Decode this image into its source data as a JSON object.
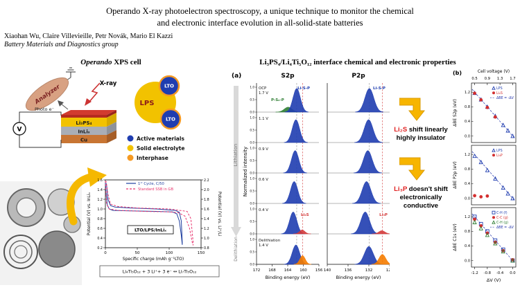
{
  "colors": {
    "accent_yellow": "#f5b800",
    "xps_blue": "#1f3db0",
    "electrolyte_yellow": "#f2c200",
    "interphase_orange": "#f59a23",
    "alert_red": "#e02020",
    "copper": "#c87533",
    "series_pink": "#e8336d"
  },
  "header": {
    "title_line1": "Operando X-ray photoelectron spectroscopy, a unique technique to monitor the chemical",
    "title_line2": "and electronic interface evolution in all-solid-state batteries",
    "authors": "Xiaohan Wu, Claire Villevieille,  Petr Novák, Mario El Kazzi",
    "group": "Battery Materials and Diagnostics group"
  },
  "left": {
    "heading_italic": "Operando",
    "heading_rest": " XPS cell",
    "schematic": {
      "analyzer_label": "Analyzer",
      "xray_label": "X-ray",
      "photo_e_label": "Photo e⁻",
      "voltmeter_label": "V",
      "lps_label": "LPS",
      "lto_label": "LTO",
      "layer_labels": [
        "Li₃PS₄",
        "InLiₓ",
        "Cu"
      ],
      "legend": [
        {
          "label": "Active materials",
          "color": "#1f3db0"
        },
        {
          "label": "Solid electrolyte",
          "color": "#f2c200"
        },
        {
          "label": "Interphase",
          "color": "#f59a23"
        }
      ]
    }
  },
  "middle": {
    "heading": "Li₃PS₄/Li₄Ti₅O₁₂  interface chemical and electronic properties"
  },
  "annotations": [
    {
      "highlight": "Li₂S",
      "rest": " shift linearly",
      "line2": "highly insulator"
    },
    {
      "highlight": "Li₃P",
      "rest": " doesn't shift",
      "line2": "electronically conductive"
    }
  ],
  "chart_data": [
    {
      "id": "echem",
      "type": "line",
      "xlabel": "Specific charge (mAh g⁻¹LTO)",
      "ylabel_left": "Potential (V) vs. InLiₓ",
      "ylabel_right": "Potential (V) vs. Li⁺/Li",
      "xlim": [
        0,
        150
      ],
      "xticks": [
        0,
        50,
        100,
        150
      ],
      "ylim_left": [
        0.2,
        1.6
      ],
      "yticks_left": [
        0.2,
        0.4,
        0.6,
        0.8,
        1.0,
        1.2,
        1.4,
        1.6
      ],
      "ylim_right": [
        0.8,
        2.2
      ],
      "yticks_right": [
        0.8,
        1.0,
        1.2,
        1.4,
        1.6,
        1.8,
        2.0,
        2.2
      ],
      "inner_label": "LTO/LPS/InLiₓ",
      "equation": "Li₄Ti₅O₁₂ + 3 Li⁺+ 3 e⁻ ↔ Li₇Ti₅O₁₂",
      "series": [
        {
          "name": "1ˢᵗ Cycle, C/50",
          "color": "#1f3f9f",
          "dash": false,
          "x": [
            0,
            1,
            3,
            6,
            12,
            40,
            80,
            105,
            112,
            116,
            119,
            120.5,
            120.5,
            119,
            116,
            110,
            80,
            40,
            15,
            8,
            4,
            2.5,
            1.5
          ],
          "y": [
            1.55,
            1.35,
            1.08,
            1.0,
            0.97,
            0.96,
            0.95,
            0.94,
            0.9,
            0.75,
            0.45,
            0.26,
            0.3,
            0.75,
            0.93,
            0.97,
            1.0,
            1.02,
            1.04,
            1.07,
            1.2,
            1.42,
            1.53
          ]
        },
        {
          "name": "Standard SSB in GB",
          "color": "#e8336d",
          "dash": true,
          "x": [
            0,
            2,
            6,
            20,
            60,
            100,
            115,
            125,
            132,
            136,
            137.5,
            137.5,
            134,
            128,
            100,
            50,
            20,
            8,
            4,
            2,
            1.2
          ],
          "y": [
            1.58,
            1.1,
            1.0,
            0.97,
            0.95,
            0.94,
            0.92,
            0.85,
            0.6,
            0.32,
            0.25,
            0.33,
            0.8,
            0.95,
            1.0,
            1.02,
            1.05,
            1.1,
            1.3,
            1.5,
            1.57
          ]
        }
      ]
    },
    {
      "id": "xps",
      "type": "spectra",
      "panel_label": "(a)",
      "ylabel": "Normalized intensity",
      "lithiation_label": "Lithiation",
      "delithiation_label": "Delithiation",
      "yticks": [
        "1.0",
        "0.5",
        "0.0"
      ],
      "columns": [
        {
          "title": "S2p",
          "xlabel": "Binding energy (eV)",
          "xmin": 172,
          "xmax": 156,
          "xticks": [
            172,
            168,
            164,
            160,
            156
          ],
          "guides": [
            {
              "x": 161.7,
              "color": "#8a8a8a"
            },
            {
              "x": 160.15,
              "color": "#d43a3a"
            }
          ]
        },
        {
          "title": "P2p",
          "xlabel": "Binding energy (eV)",
          "xmin": 140,
          "xmax": 128,
          "xticks": [
            140,
            136,
            132,
            128
          ],
          "guides": [
            {
              "x": 131.9,
              "color": "#8a8a8a"
            },
            {
              "x": 129.4,
              "color": "#d43a3a"
            }
          ]
        }
      ],
      "rows": [
        {
          "label_lines": [
            "OCP",
            "1.7 V"
          ],
          "spectra": [
            {
              "peaks": [
                {
                  "c": 163.9,
                  "h": 0.2,
                  "w": 1.0,
                  "color": "#2e7d32",
                  "label": "P-Sₓ-P",
                  "label_x": 166.6,
                  "label_dy": 26
                },
                {
                  "c": 161.7,
                  "h": 0.95,
                  "w": 0.95,
                  "color": "#1f3db0",
                  "label": "Li-S-P",
                  "label_x": 159.9,
                  "label_dy": 9
                }
              ]
            },
            {
              "peaks": [
                {
                  "c": 131.9,
                  "h": 0.95,
                  "w": 0.85,
                  "color": "#1f3db0",
                  "label": "Li-S-P",
                  "label_x": 130.0,
                  "label_dy": 9
                }
              ]
            }
          ]
        },
        {
          "label_lines": [
            "1.1 V"
          ],
          "spectra": [
            {
              "peaks": [
                {
                  "c": 161.9,
                  "h": 0.92,
                  "w": 0.95,
                  "color": "#1f3db0"
                }
              ]
            },
            {
              "peaks": [
                {
                  "c": 132.05,
                  "h": 0.92,
                  "w": 0.85,
                  "color": "#1f3db0"
                }
              ]
            }
          ]
        },
        {
          "label_lines": [
            "0.9 V"
          ],
          "spectra": [
            {
              "peaks": [
                {
                  "c": 162.1,
                  "h": 0.9,
                  "w": 0.95,
                  "color": "#1f3db0"
                }
              ]
            },
            {
              "peaks": [
                {
                  "c": 132.2,
                  "h": 0.9,
                  "w": 0.85,
                  "color": "#1f3db0"
                }
              ]
            }
          ]
        },
        {
          "label_lines": [
            "0.6 V"
          ],
          "spectra": [
            {
              "peaks": [
                {
                  "c": 162.35,
                  "h": 0.88,
                  "w": 0.95,
                  "color": "#1f3db0"
                }
              ]
            },
            {
              "peaks": [
                {
                  "c": 132.45,
                  "h": 0.88,
                  "w": 0.85,
                  "color": "#1f3db0"
                }
              ]
            }
          ]
        },
        {
          "label_lines": [
            "0.4 V"
          ],
          "spectra": [
            {
              "peaks": [
                {
                  "c": 162.6,
                  "h": 0.88,
                  "w": 0.95,
                  "color": "#1f3db0"
                },
                {
                  "c": 160.3,
                  "h": 0.16,
                  "w": 0.7,
                  "color": "#d43a3a",
                  "label": "Li₂S",
                  "label_x": 159.6,
                  "label_dy": 16
                }
              ]
            },
            {
              "peaks": [
                {
                  "c": 132.7,
                  "h": 0.88,
                  "w": 0.85,
                  "color": "#1f3db0"
                },
                {
                  "c": 129.5,
                  "h": 0.13,
                  "w": 0.6,
                  "color": "#d43a3a",
                  "label": "Li₃P",
                  "label_x": 129.2,
                  "label_dy": 16
                }
              ]
            }
          ]
        },
        {
          "label_lines": [
            "Delithiation",
            "1.4 V"
          ],
          "spectra": [
            {
              "peaks": [
                {
                  "c": 161.9,
                  "h": 0.78,
                  "w": 0.95,
                  "color": "#1f3db0"
                },
                {
                  "c": 160.2,
                  "h": 0.35,
                  "w": 0.7,
                  "color": "#f57c00"
                }
              ]
            },
            {
              "peaks": [
                {
                  "c": 132.0,
                  "h": 0.72,
                  "w": 0.85,
                  "color": "#1f3db0"
                },
                {
                  "c": 129.4,
                  "h": 0.4,
                  "w": 0.65,
                  "color": "#f57c00"
                }
              ]
            }
          ]
        }
      ]
    },
    {
      "id": "dbe",
      "type": "scatter",
      "panel_label": "(b)",
      "top_axis": {
        "label": "Cell voltage (V)",
        "ticks": [
          0.5,
          0.9,
          1.3,
          1.7
        ]
      },
      "xlabel": "ΔV (V)",
      "xlim": [
        -1.3,
        0.1
      ],
      "xticks": [
        -1.2,
        -0.8,
        -0.4,
        0.0
      ],
      "plots": [
        {
          "ylabel": "ΔBE S2p (eV)",
          "ylim": [
            -0.18,
            1.45
          ],
          "yticks": [
            0.0,
            0.4,
            0.8,
            1.2
          ],
          "ref_label": "ΔBE = -ΔV",
          "series": [
            {
              "name": "LPS",
              "marker": "triangle-open",
              "color": "#1f3db0",
              "points": [
                [
                  0,
                  0
                ],
                [
                  -0.15,
                  0.15
                ],
                [
                  -0.3,
                  0.3
                ],
                [
                  -0.55,
                  0.55
                ],
                [
                  -0.8,
                  0.8
                ],
                [
                  -1.0,
                  1.0
                ],
                [
                  -1.2,
                  1.18
                ]
              ]
            },
            {
              "name": "Li₂S",
              "marker": "circle-filled",
              "color": "#d32f2f",
              "points": [
                [
                  -0.55,
                  0.52
                ],
                [
                  -0.8,
                  0.78
                ],
                [
                  -1.0,
                  0.99
                ],
                [
                  -1.2,
                  1.17
                ]
              ]
            }
          ]
        },
        {
          "ylabel": "ΔBE P2p (eV)",
          "ylim": [
            -0.18,
            1.45
          ],
          "yticks": [
            0.0,
            0.4,
            0.8,
            1.2
          ],
          "ref_label": null,
          "series": [
            {
              "name": "LPS",
              "marker": "triangle-open",
              "color": "#1f3db0",
              "points": [
                [
                  0,
                  0
                ],
                [
                  -0.15,
                  0.13
                ],
                [
                  -0.3,
                  0.29
                ],
                [
                  -0.55,
                  0.54
                ],
                [
                  -0.8,
                  0.77
                ],
                [
                  -1.0,
                  0.99
                ],
                [
                  -1.2,
                  1.16
                ]
              ]
            },
            {
              "name": "Li₃P",
              "marker": "circle-filled",
              "color": "#d32f2f",
              "points": [
                [
                  -0.8,
                  0.06
                ],
                [
                  -1.0,
                  0.04
                ],
                [
                  -1.2,
                  0.07
                ]
              ]
            }
          ]
        },
        {
          "ylabel": "ΔBE C1s (eV)",
          "ylim": [
            -0.18,
            1.45
          ],
          "yticks": [
            0.0,
            0.4,
            0.8,
            1.2
          ],
          "ref_label": "ΔBE = -ΔV",
          "series": [
            {
              "name": "C-H (f)",
              "marker": "square-open",
              "color": "#1f3db0",
              "points": [
                [
                  0,
                  0
                ],
                [
                  -0.3,
                  0.3
                ],
                [
                  -0.55,
                  0.55
                ],
                [
                  -0.8,
                  0.8
                ],
                [
                  -1.0,
                  1.0
                ],
                [
                  -1.2,
                  1.2
                ]
              ]
            },
            {
              "name": "C-C (g)",
              "marker": "circle-filled",
              "color": "#d32f2f",
              "points": [
                [
                  0,
                  0.02
                ],
                [
                  -0.3,
                  0.27
                ],
                [
                  -0.55,
                  0.5
                ],
                [
                  -0.8,
                  0.75
                ],
                [
                  -1.0,
                  0.95
                ],
                [
                  -1.2,
                  1.13
                ]
              ]
            },
            {
              "name": "C-H (g)",
              "marker": "triangle-open",
              "color": "#2e7d32",
              "points": [
                [
                  0,
                  0
                ],
                [
                  -0.3,
                  0.25
                ],
                [
                  -0.55,
                  0.47
                ],
                [
                  -0.8,
                  0.7
                ],
                [
                  -1.0,
                  0.88
                ],
                [
                  -1.2,
                  1.05
                ]
              ]
            }
          ]
        }
      ]
    }
  ]
}
